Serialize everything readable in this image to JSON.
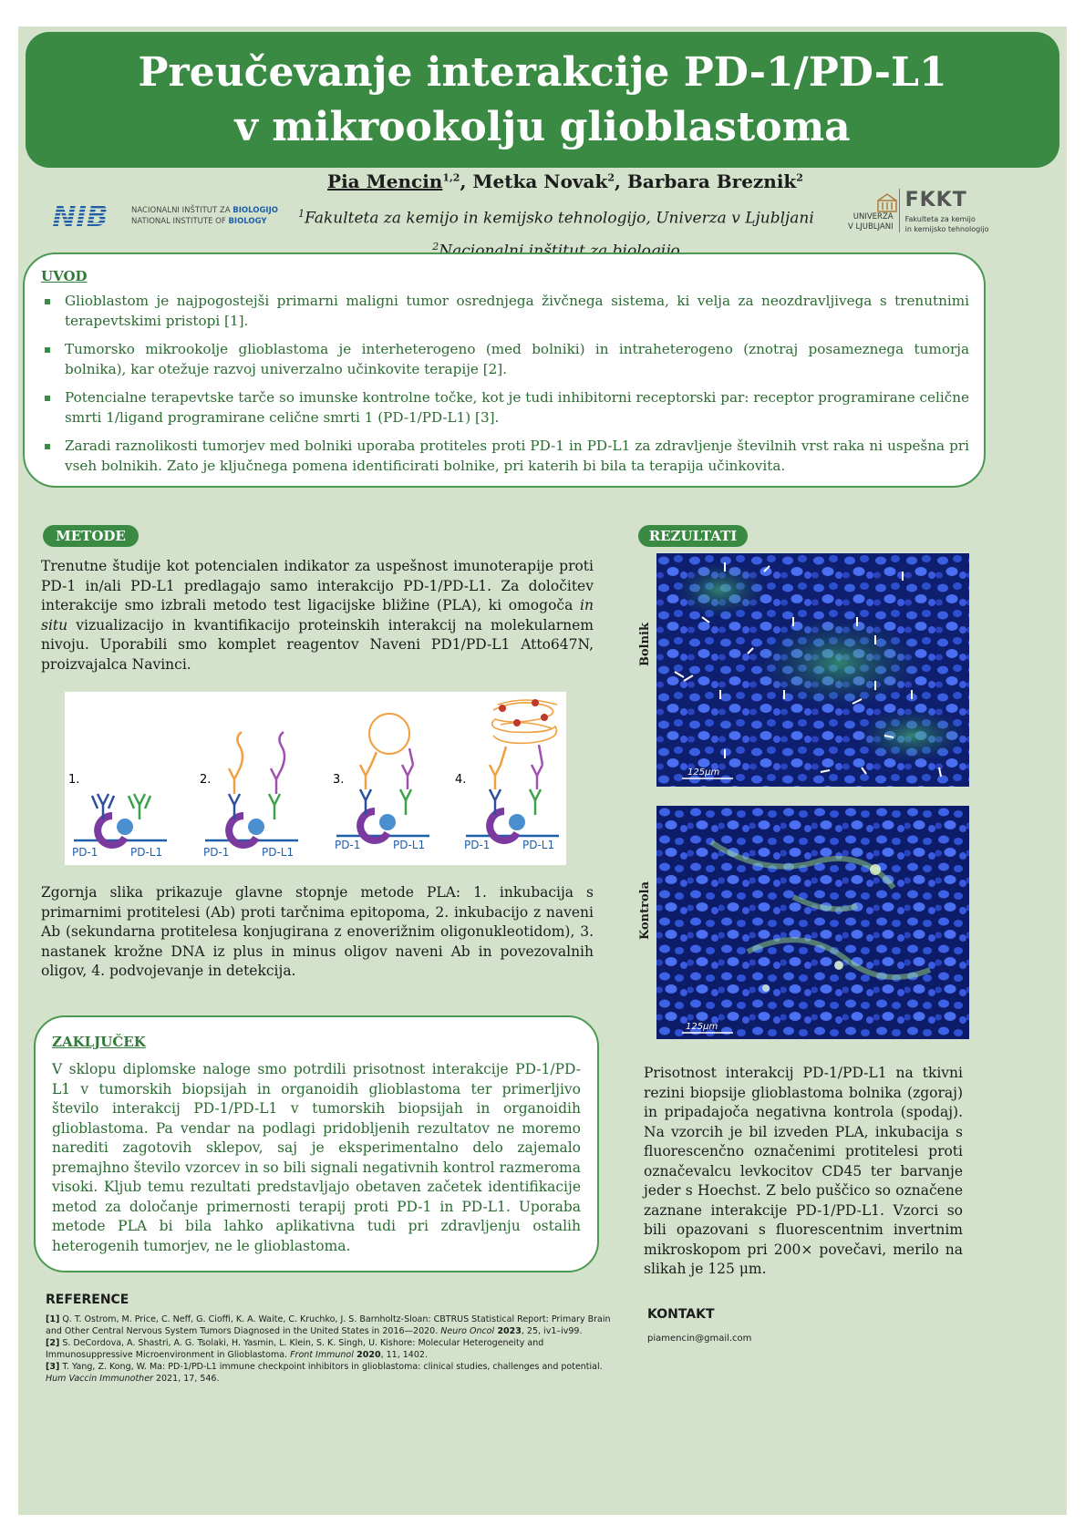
{
  "title": "Preučevanje interakcije PD-1/PD-L1 v mikrookolju glioblastoma",
  "authors": {
    "a1": "Pia Mencin",
    "a1_sup": "1,2",
    "a2": "Metka Novak",
    "a2_sup": "2",
    "a3": "Barbara Breznik",
    "a3_sup": "2"
  },
  "affiliations": {
    "aff1_sup": "1",
    "aff1": "Fakulteta za kemijo in kemijsko tehnologijo, Univerza v Ljubljani",
    "aff2_sup": "2",
    "aff2": "Nacionalni inštitut za biologijo"
  },
  "logos": {
    "nib_mark": "NIB",
    "nib_line1": "NACIONALNI INŠTITUT ZA",
    "nib_line1b": "BIOLOGIJO",
    "nib_line2": "NATIONAL INSTITUTE OF",
    "nib_line2b": "BIOLOGY",
    "ul_line1": "UNIVERZA",
    "ul_line2": "V LJUBLJANI",
    "fkkt": "FKKT",
    "fkkt_line1": "Fakulteta za kemijo",
    "fkkt_line2": "in kemijsko tehnologijo"
  },
  "uvod": {
    "heading": "UVOD",
    "items": [
      "Glioblastom je najpogostejši primarni maligni tumor osrednjega živčnega sistema, ki velja za neozdravljivega s trenutnimi terapevtskimi pristopi [1].",
      "Tumorsko mikrookolje glioblastoma je interheterogeno (med bolniki) in intraheterogeno (znotraj posameznega tumorja bolnika), kar otežuje razvoj univerzalno učinkovite terapije [2].",
      "Potencialne terapevtske tarče so imunske kontrolne točke, kot je tudi inhibitorni receptorski par: receptor programirane celične smrti 1/ligand programirane celične smrti 1 (PD-1/PD-L1) [3].",
      "Zaradi raznolikosti tumorjev med bolniki uporaba protiteles proti PD-1 in PD-L1 za zdravljenje številnih vrst raka ni uspešna pri vseh bolnikih. Zato je ključnega pomena identificirati bolnike, pri katerih bi bila ta terapija učinkovita."
    ]
  },
  "metode": {
    "heading": "METODE",
    "text_a": "Trenutne študije kot potencialen indikator za uspešnost imunoterapije proti PD-1 in/ali PD-L1 predlagajo samo interakcijo PD-1/PD-L1. Za določitev interakcije smo izbrali metodo test ligacijske bližine (PLA), ki omogoča ",
    "text_italic": "in situ",
    "text_b": " vizualizacijo in kvantifikacijo proteinskih interakcij na molekularnem nivoju. Uporabili smo komplet reagentov Naveni PD1/PD-L1 Atto647N, proizvajalca Navinci.",
    "figure": {
      "steps": [
        "1.",
        "2.",
        "3.",
        "4."
      ],
      "label_pd1": "PD-1",
      "label_pdl1": "PD-L1"
    },
    "caption": "Zgornja slika prikazuje glavne stopnje metode PLA: 1. inkubacija s primarnimi protitelesi (Ab) proti tarčnima epitopoma, 2. inkubacijo z naveni Ab (sekundarna protitelesa konjugirana z enoverižnim oligonukleotidom), 3. nastanek krožne DNA iz plus in minus oligov naveni Ab in povezovalnih oligov, 4. podvojevanje in detekcija."
  },
  "rezultati": {
    "heading": "REZULTATI",
    "label_top": "Bolnik",
    "label_bottom": "Kontrola",
    "scale_top": "125μm",
    "scale_bottom": "125μm",
    "caption": "Prisotnost interakcij PD-1/PD-L1 na tkivni rezini biopsije glioblastoma bolnika (zgoraj) in pripadajoča negativna kontrola (spodaj). Na vzorcih je bil izveden PLA, inkubacija s fluorescenčno označenimi protitelesi proti označevalcu levkocitov CD45 ter barvanje jeder s Hoechst. Z belo puščico so označene zaznane interakcije PD-1/PD-L1. Vzorci so bili opazovani s fluorescentnim invertnim mikroskopom pri 200× povečavi, merilo na slikah je 125 μm."
  },
  "zakljucek": {
    "heading": "ZAKLJUČEK",
    "text": "V sklopu diplomske naloge smo potrdili prisotnost interakcije PD-1/PD-L1 v tumorskih biopsijah in organoidih glioblastoma ter primerljivo število interakcij PD-1/PD-L1 v tumorskih biopsijah in organoidih glioblastoma. Pa vendar na podlagi pridobljenih rezultatov ne moremo narediti zagotovih sklepov, saj je eksperimentalno delo zajemalo premajhno število vzorcev in so bili signali negativnih kontrol razmeroma visoki. Kljub temu rezultati predstavljajo obetaven začetek identifikacije metod za določanje primernosti terapij proti PD-1 in PD-L1. Uporaba metode PLA bi bila lahko aplikativna tudi pri zdravljenju ostalih heterogenih tumorjev, ne le glioblastoma."
  },
  "reference": {
    "heading": "REFERENCE",
    "r1_num": "[1]",
    "r1_text": " Q. T. Ostrom, M. Price, C. Neff, G. Cioffi, K. A. Waite, C. Kruchko, J. S. Barnholtz-Sloan: CBTRUS Statistical Report: Primary Brain and Other Central Nervous System Tumors Diagnosed in the United States in 2016—2020. ",
    "r1_journal": "Neuro Oncol",
    "r1_year": " 2023",
    "r1_rest": ", 25, iv1–iv99.",
    "r2_num": "[2]",
    "r2_text": " S. DeCordova, A. Shastri, A. G. Tsolaki, H. Yasmin, L. Klein, S. K. Singh, U. Kishore: Molecular Heterogeneity and Immunosuppressive Microenvironment in Glioblastoma. ",
    "r2_journal": "Front Immunol",
    "r2_year": " 2020",
    "r2_rest": ", 11, 1402.",
    "r3_num": "[3]",
    "r3_text": " T. Yang, Z. Kong, W. Ma: PD-1/PD-L1 immune checkpoint inhibitors in glioblastoma: clinical studies, challenges and potential. ",
    "r3_journal": "Hum Vaccin Immunother",
    "r3_rest": " 2021, 17, 546."
  },
  "kontakt": {
    "heading": "KONTAKT",
    "email": "piamencin@gmail.com"
  },
  "colors": {
    "accent_green": "#3a8a43",
    "background": "#d4e2cc",
    "body_text_green": "#2a6b31",
    "nib_blue": "#1f5fa8",
    "pd1_color": "#2d4fa0",
    "pdl1_color": "#3aa34a",
    "secondary_orange": "#f0a040",
    "secondary_purple": "#a050b0"
  }
}
